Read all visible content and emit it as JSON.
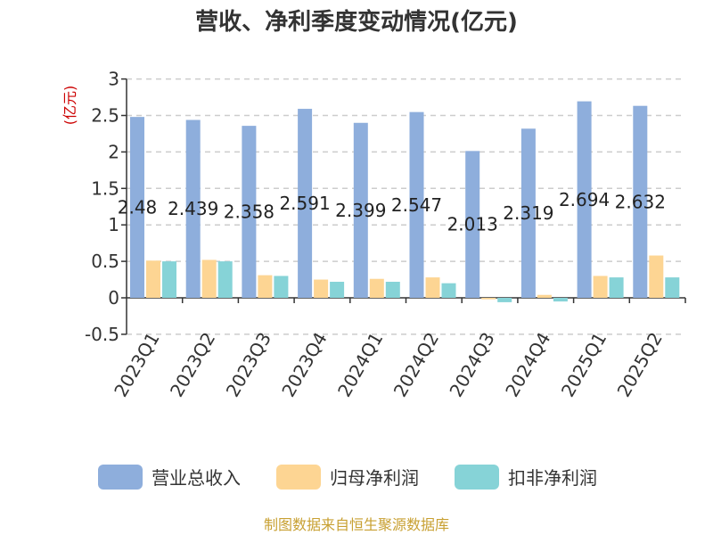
{
  "chart_data": {
    "type": "bar",
    "title": "营收、净利季度变动情况(亿元)",
    "unit": "(亿元)",
    "categories": [
      "2023Q1",
      "2023Q2",
      "2023Q3",
      "2023Q4",
      "2024Q1",
      "2024Q2",
      "2024Q3",
      "2024Q4",
      "2025Q1",
      "2025Q2"
    ],
    "series": [
      {
        "name": "营业总收入",
        "color": "#8eaedc",
        "values": [
          2.48,
          2.439,
          2.358,
          2.591,
          2.399,
          2.547,
          2.013,
          2.319,
          2.694,
          2.632
        ],
        "labels": [
          "2.48",
          "2.439",
          "2.358",
          "2.591",
          "2.399",
          "2.547",
          "2.013",
          "2.319",
          "2.694",
          "2.632"
        ]
      },
      {
        "name": "归母净利润",
        "color": "#fdd593",
        "values": [
          0.51,
          0.52,
          0.31,
          0.25,
          0.26,
          0.28,
          -0.02,
          0.04,
          0.3,
          0.58
        ]
      },
      {
        "name": "扣非净利润",
        "color": "#86d3d7",
        "values": [
          0.5,
          0.5,
          0.3,
          0.22,
          0.22,
          0.2,
          -0.06,
          -0.05,
          0.28,
          0.28
        ]
      }
    ],
    "yticks": [
      "3",
      "2.5",
      "2",
      "1.5",
      "1",
      "0.5",
      "0",
      "-0.5"
    ],
    "ylim": [
      -0.5,
      3
    ],
    "grid": true,
    "legend_position": "bottom",
    "source": "制图数据来自恒生聚源数据库"
  }
}
